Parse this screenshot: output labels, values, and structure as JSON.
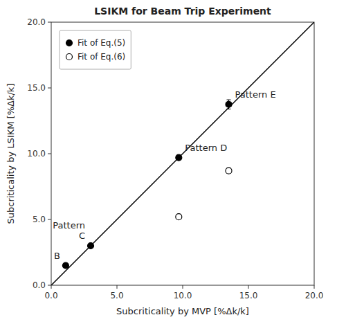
{
  "chart_data": {
    "type": "scatter",
    "title": "LSIKM for Beam Trip Experiment",
    "x_label": "Subcriticality by MVP  [%Δk/k]",
    "y_label": "Subcriticality by LSIKM  [%Δk/k]",
    "xlim": [
      0,
      20
    ],
    "ylim": [
      0,
      20
    ],
    "xticks": [
      {
        "value": 0,
        "label": "0.0"
      },
      {
        "value": 5,
        "label": "5.0"
      },
      {
        "value": 10,
        "label": "10.0"
      },
      {
        "value": 15,
        "label": "15.0"
      },
      {
        "value": 20,
        "label": "20.0"
      }
    ],
    "yticks": [
      {
        "value": 0,
        "label": "0.0"
      },
      {
        "value": 5,
        "label": "5.0"
      },
      {
        "value": 10,
        "label": "10.0"
      },
      {
        "value": 15,
        "label": "15.0"
      },
      {
        "value": 20,
        "label": "20.0"
      }
    ],
    "grid": false,
    "legend": "upper left",
    "reference_line": {
      "x": [
        0,
        20
      ],
      "values": [
        0,
        20
      ],
      "color": "#000000"
    },
    "series": [
      {
        "name": "Fit of Eq.(5)",
        "marker": "circle",
        "color": "#000000",
        "x": [
          1.1,
          3.0,
          9.7,
          13.5
        ],
        "values": [
          1.5,
          3.0,
          9.7,
          13.75
        ],
        "x_errors": [
          0.0,
          0.0,
          0.15,
          0.2
        ],
        "errors": [
          0.12,
          0.12,
          0.18,
          0.35
        ]
      },
      {
        "name": "Fit of Eq.(6)",
        "marker": "open_circle",
        "color": "#000000",
        "x": [
          9.7,
          13.5
        ],
        "values": [
          5.2,
          8.7
        ],
        "errors": [
          0.18,
          0.2
        ]
      }
    ],
    "annotations": [
      {
        "text": "B",
        "x": 1.1,
        "y": 1.5
      },
      {
        "text": "Pattern\nC",
        "x": 3.0,
        "y": 3.0
      },
      {
        "text": "Pattern D",
        "x": 9.7,
        "y": 9.7
      },
      {
        "text": "Pattern E",
        "x": 13.5,
        "y": 13.75
      }
    ]
  }
}
